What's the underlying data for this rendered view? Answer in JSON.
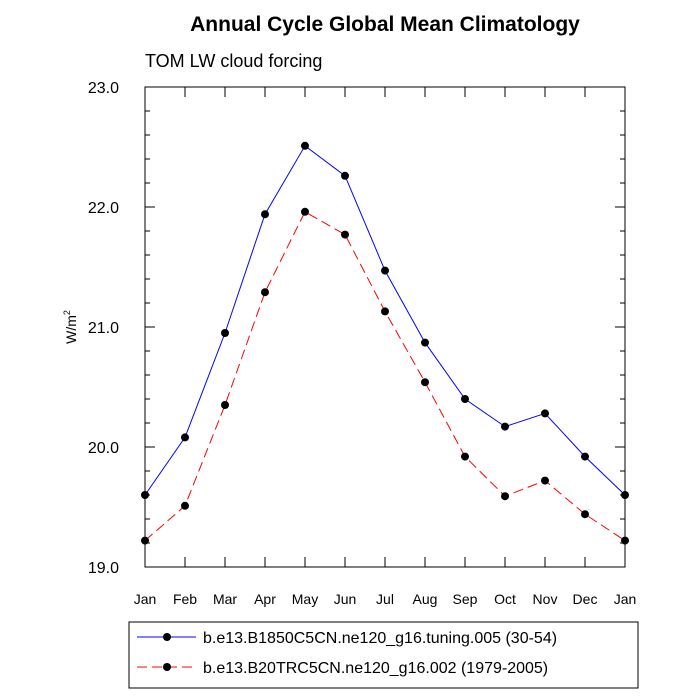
{
  "chart_data": {
    "type": "line",
    "title": "Annual Cycle Global Mean Climatology",
    "subtitle": "TOM LW cloud forcing",
    "ylabel": "W/m",
    "ylabel_superscript": "2",
    "xlabel": "",
    "categories": [
      "Jan",
      "Feb",
      "Mar",
      "Apr",
      "May",
      "Jun",
      "Jul",
      "Aug",
      "Sep",
      "Oct",
      "Nov",
      "Dec",
      "Jan"
    ],
    "ylim": [
      19.0,
      23.0
    ],
    "yticks": [
      19.0,
      20.0,
      21.0,
      22.0,
      23.0
    ],
    "ytick_labels": [
      "19.0",
      "20.0",
      "21.0",
      "22.0",
      "23.0"
    ],
    "grid": false,
    "legend_position": "bottom",
    "series": [
      {
        "name": "b.e13.B1850C5CN.ne120_g16.tuning.005 (30-54)",
        "color": "#0000ff",
        "dash": "solid",
        "values": [
          19.6,
          20.08,
          20.95,
          21.94,
          22.51,
          22.26,
          21.47,
          20.87,
          20.4,
          20.17,
          20.28,
          19.92,
          19.6
        ]
      },
      {
        "name": "b.e13.B20TRC5CN.ne120_g16.002 (1979-2005)",
        "color": "#ff0000",
        "dash": "dashed",
        "values": [
          19.22,
          19.51,
          20.35,
          21.29,
          21.96,
          21.77,
          21.13,
          20.54,
          19.92,
          19.59,
          19.72,
          19.44,
          19.22
        ]
      }
    ]
  }
}
